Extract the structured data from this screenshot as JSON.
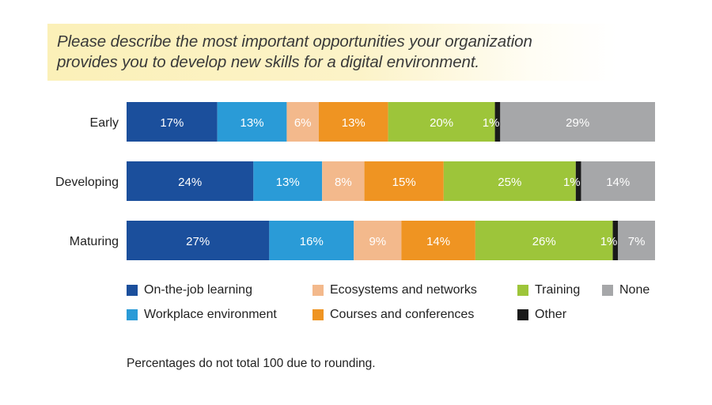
{
  "question": "Please describe the most important opportunities your organization provides you to develop new skills for a digital environment.",
  "footnote": "Percentages do not total 100 due to rounding.",
  "chart_data": {
    "type": "bar",
    "orientation": "horizontal",
    "stacked": true,
    "title": "Please describe the most important opportunities your organization provides you to develop new skills for a digital environment.",
    "categories": [
      "Early",
      "Developing",
      "Maturing"
    ],
    "series": [
      {
        "name": "On-the-job learning",
        "color": "#1b4f9c",
        "values": [
          17,
          24,
          27
        ],
        "labels": [
          "17%",
          "24%",
          "27%"
        ]
      },
      {
        "name": "Workplace environment",
        "color": "#2a9bd7",
        "values": [
          13,
          13,
          16
        ],
        "labels": [
          "13%",
          "13%",
          "16%"
        ]
      },
      {
        "name": "Ecosystems and networks",
        "color": "#f3b98c",
        "values": [
          6,
          8,
          9
        ],
        "labels": [
          "6%",
          "8%",
          "9%"
        ]
      },
      {
        "name": "Courses and conferences",
        "color": "#ef9422",
        "values": [
          13,
          15,
          14
        ],
        "labels": [
          "13%",
          "15%",
          "14%"
        ]
      },
      {
        "name": "Training",
        "color": "#9dc53a",
        "values": [
          20,
          25,
          26
        ],
        "labels": [
          "20%",
          "25%",
          "26%"
        ]
      },
      {
        "name": "Other",
        "color": "#1a1a1a",
        "values": [
          1,
          1,
          1
        ],
        "labels": [
          "1%",
          "1%",
          "1%"
        ]
      },
      {
        "name": "None",
        "color": "#a6a7a9",
        "values": [
          29,
          14,
          7
        ],
        "labels": [
          "29%",
          "14%",
          "7%"
        ]
      }
    ],
    "legend_position": "bottom",
    "grid": false
  }
}
